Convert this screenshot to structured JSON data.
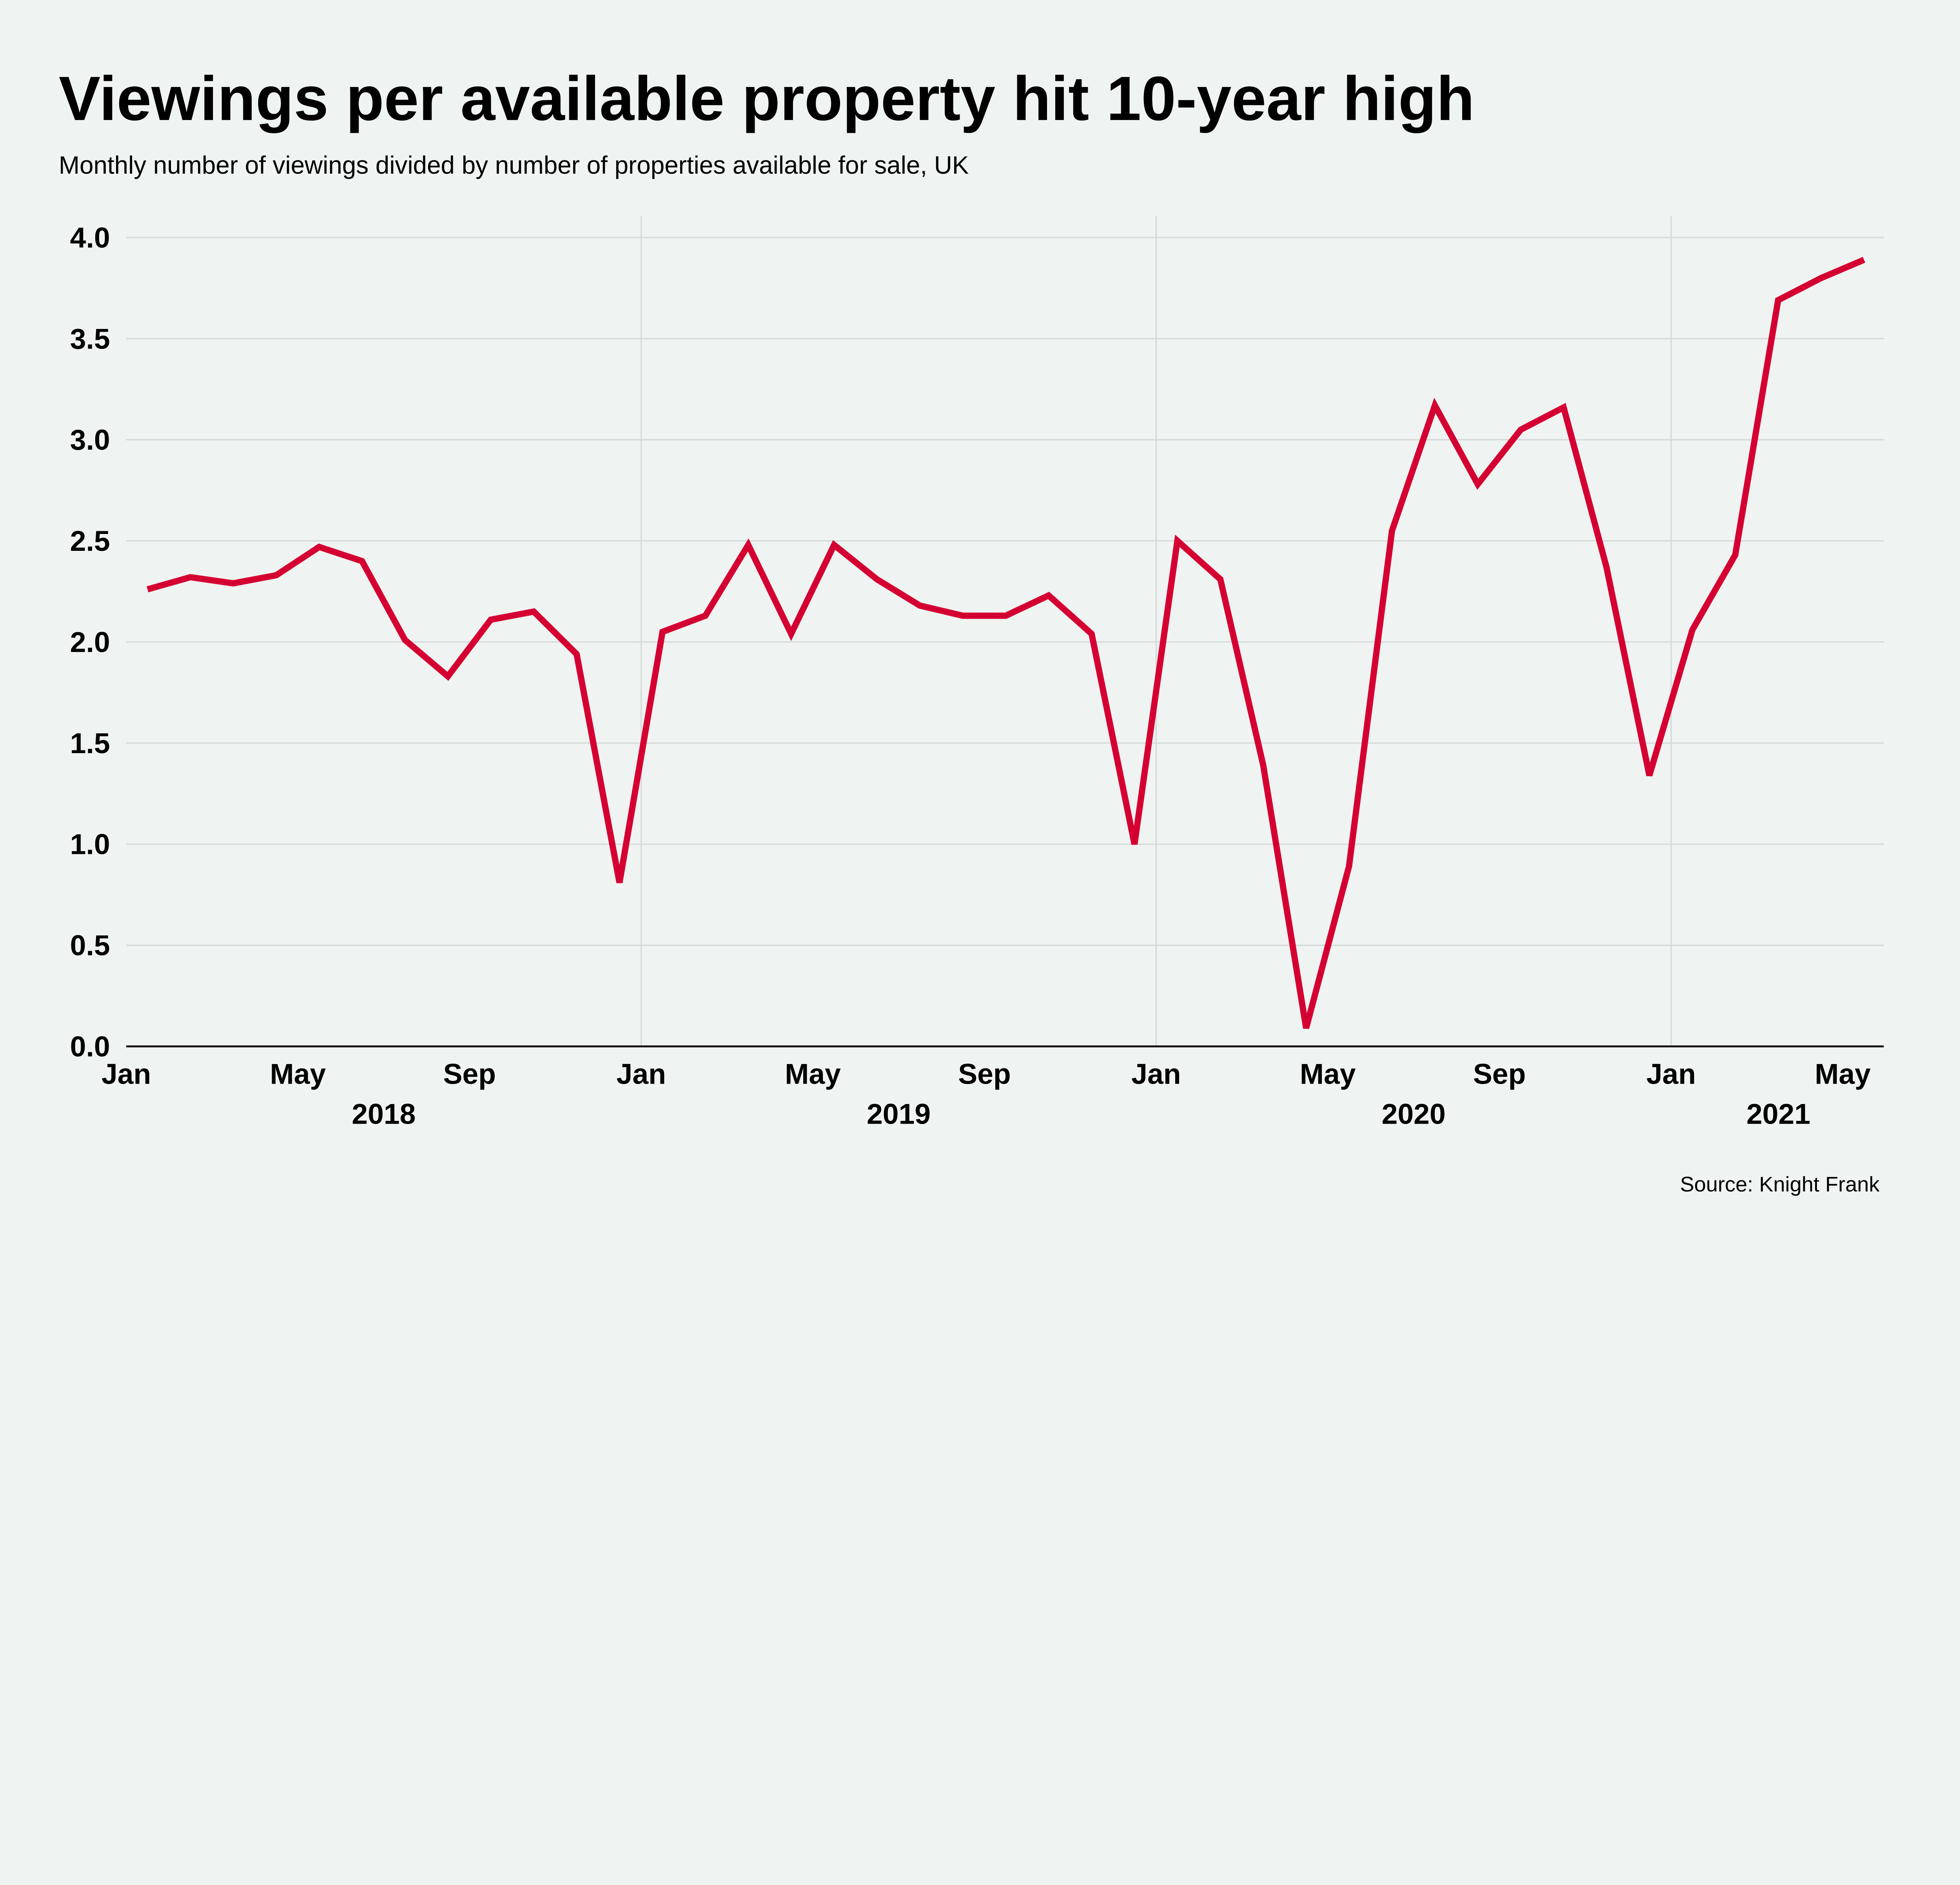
{
  "title": "Viewings per available property hit 10-year high",
  "subtitle": "Monthly number of viewings divided by number of properties available for sale, UK",
  "source": "Source: Knight Frank",
  "colors": {
    "background": "#eff3f1",
    "line": "#d50032",
    "grid": "#d4d8d6",
    "axis": "#000000"
  },
  "chart_data": {
    "type": "line",
    "title": "Viewings per available property hit 10-year high",
    "xlabel": "",
    "ylabel": "",
    "ylim": [
      0,
      4
    ],
    "grid": true,
    "y_ticks": [
      "0.0",
      "0.5",
      "1.0",
      "1.5",
      "2.0",
      "2.5",
      "3.0",
      "3.5",
      "4.0"
    ],
    "x_month_ticks": [
      "Jan",
      "May",
      "Sep",
      "Jan",
      "May",
      "Sep",
      "Jan",
      "May",
      "Sep",
      "Jan",
      "May"
    ],
    "x_year_labels": [
      "2018",
      "2019",
      "2020",
      "2021"
    ],
    "x": [
      "2018-01",
      "2018-02",
      "2018-03",
      "2018-04",
      "2018-05",
      "2018-06",
      "2018-07",
      "2018-08",
      "2018-09",
      "2018-10",
      "2018-11",
      "2018-12",
      "2019-01",
      "2019-02",
      "2019-03",
      "2019-04",
      "2019-05",
      "2019-06",
      "2019-07",
      "2019-08",
      "2019-09",
      "2019-10",
      "2019-11",
      "2019-12",
      "2020-01",
      "2020-02",
      "2020-03",
      "2020-04",
      "2020-05",
      "2020-06",
      "2020-07",
      "2020-08",
      "2020-09",
      "2020-10",
      "2020-11",
      "2020-12",
      "2021-01",
      "2021-02",
      "2021-03",
      "2021-04",
      "2021-05"
    ],
    "values": [
      2.26,
      2.32,
      2.29,
      2.33,
      2.47,
      2.4,
      2.01,
      1.83,
      2.11,
      2.15,
      1.94,
      0.81,
      2.05,
      2.13,
      2.48,
      2.04,
      2.48,
      2.31,
      2.18,
      2.13,
      2.13,
      2.23,
      2.04,
      1.0,
      2.5,
      2.31,
      1.39,
      0.09,
      0.89,
      2.55,
      3.17,
      2.78,
      3.05,
      3.16,
      2.37,
      1.34,
      2.06,
      2.43,
      3.69,
      3.8,
      3.89
    ]
  }
}
